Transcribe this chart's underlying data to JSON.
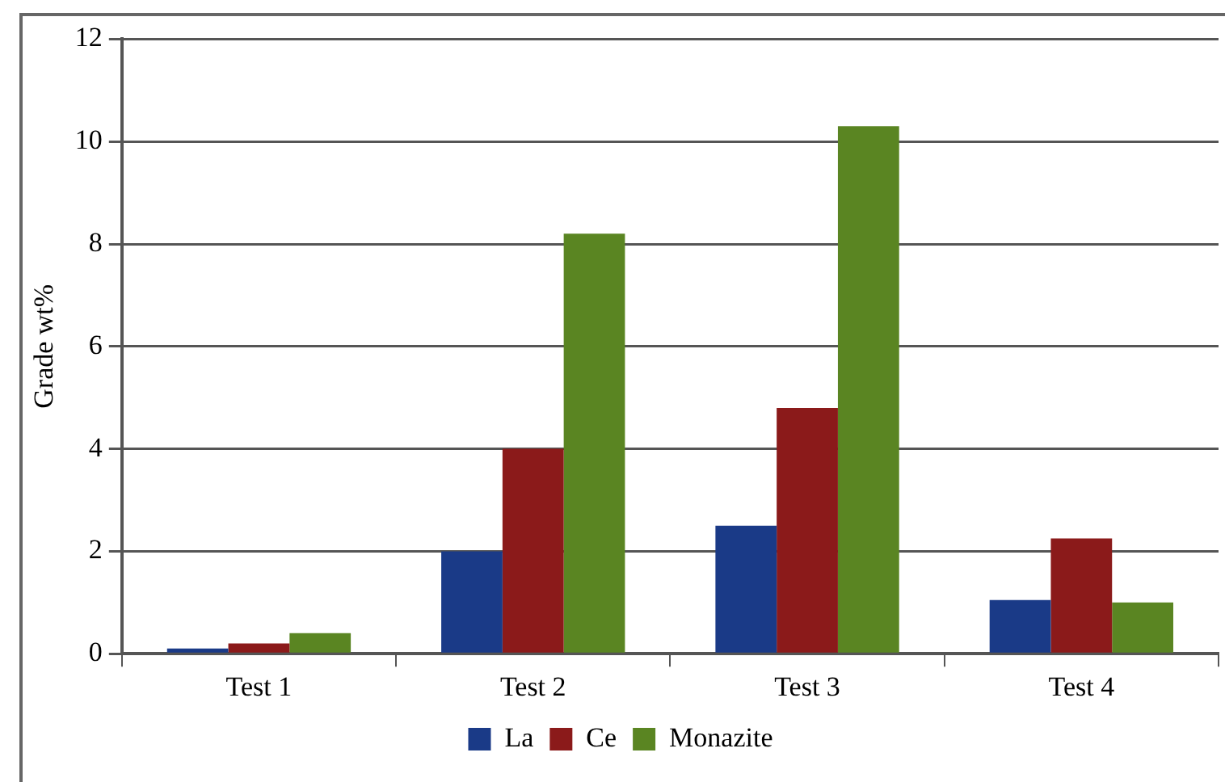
{
  "chart_data": {
    "type": "bar",
    "ylabel": "Grade wt%",
    "categories": [
      "Test 1",
      "Test 2",
      "Test 3",
      "Test 4"
    ],
    "series": [
      {
        "name": "La",
        "color": "#1a3a87",
        "values": [
          0.1,
          2.0,
          2.5,
          1.05
        ]
      },
      {
        "name": "Ce",
        "color": "#8b1a1a",
        "values": [
          0.2,
          4.0,
          4.8,
          2.25
        ]
      },
      {
        "name": "Monazite",
        "color": "#5a8522",
        "values": [
          0.4,
          8.2,
          10.3,
          1.0
        ]
      }
    ],
    "ylim": [
      0,
      12
    ],
    "yticks": [
      0,
      2,
      4,
      6,
      8,
      10,
      12
    ],
    "grid": "y",
    "legend": "bottom"
  }
}
